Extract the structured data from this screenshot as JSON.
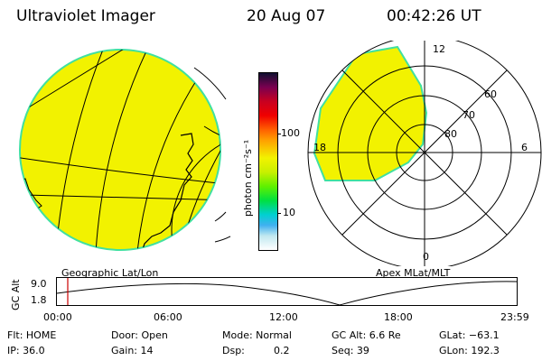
{
  "header": {
    "title": "Ultraviolet Imager",
    "date": "20 Aug 07",
    "time": "00:42:26 UT"
  },
  "panels": {
    "left_label": "Geographic Lat/Lon",
    "right_label": "Apex MLat/MLT"
  },
  "colorbar": {
    "unit_label": "photon cm⁻²s⁻¹",
    "ticks": [
      "100",
      "10"
    ]
  },
  "polar": {
    "mlt_labels": {
      "top": "12",
      "right": "6",
      "bottom": "0",
      "left": "18"
    },
    "lat_labels": [
      "60",
      "70",
      "80"
    ]
  },
  "altitude_plot": {
    "ylabel": "GC Alt",
    "yticks": [
      "9.0",
      "1.8"
    ],
    "xticks": [
      "00:00",
      "06:00",
      "12:00",
      "18:00",
      "23:59"
    ]
  },
  "info": {
    "row1": {
      "flt": "Flt: HOME",
      "door": "Door: Open",
      "mode": "Mode: Normal",
      "gcalt": "GC Alt: 6.6 Re",
      "glat": "GLat: −63.1"
    },
    "row2": {
      "ip": "IP: 36.0",
      "gain": "Gain: 14",
      "dsp_label": "Dsp:",
      "dsp_value": "0.2",
      "seq": "Seq: 39",
      "glon": "GLon: 192.3"
    }
  },
  "colors": {
    "fill": "#f2f200",
    "edge": "#40e0a0",
    "marker": "#cc0000"
  }
}
